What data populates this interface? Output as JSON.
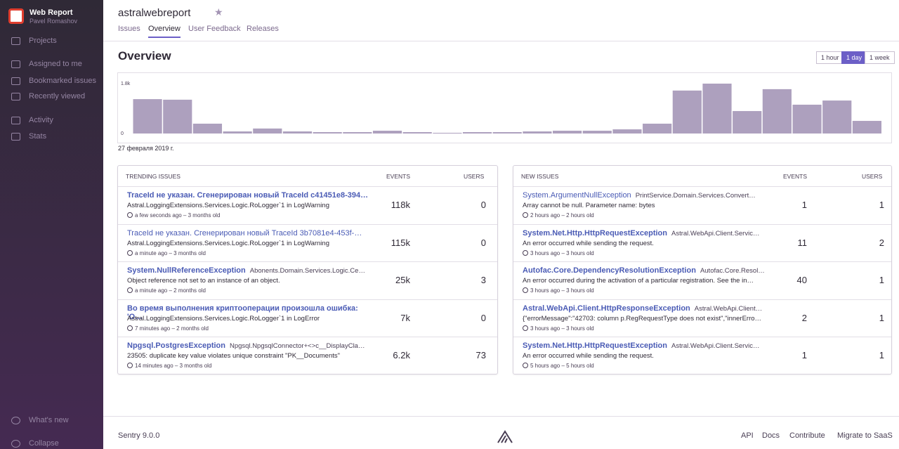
{
  "sidebar": {
    "org": "Web Report",
    "user": "Pavel Romashov",
    "nav": [
      "Projects",
      "Assigned to me",
      "Bookmarked issues",
      "Recently viewed",
      "Activity",
      "Stats"
    ],
    "bottom": [
      "What's new",
      "Collapse"
    ]
  },
  "header": {
    "project": "astralwebreport",
    "tabs": [
      "Issues",
      "Overview",
      "User Feedback",
      "Releases"
    ],
    "active_tab": 1
  },
  "overview": {
    "title": "Overview",
    "ranges": [
      "1 hour",
      "1 day",
      "1 week"
    ],
    "active_range": 1,
    "date": "27 февраля 2019 г."
  },
  "chart_data": {
    "type": "bar",
    "values": [
      1240,
      1220,
      355,
      75,
      180,
      75,
      50,
      50,
      100,
      50,
      25,
      50,
      50,
      75,
      100,
      100,
      150,
      355,
      1550,
      1800,
      810,
      1600,
      1040,
      1190,
      455
    ],
    "color": "#ada0be",
    "ylim": [
      0,
      1800
    ],
    "yticks": [
      0,
      {
        "value": 1800,
        "label": "1.8k"
      }
    ]
  },
  "trending": {
    "columns": [
      "TRENDING ISSUES",
      "EVENTS",
      "USERS"
    ],
    "rows": [
      {
        "title": "TraceId не указан. Сгенерирован новый TraceId c41451e8-394…",
        "message": "Astral.LoggingExtensions.Services.Logic.RoLogger`1 in LogWarning",
        "meta": "a few seconds ago – 3 months old",
        "events": "118k",
        "users": "0"
      },
      {
        "title": "TraceId не указан. Сгенерирован новый TraceId 3b7081e4-453f-…",
        "message": "Astral.LoggingExtensions.Services.Logic.RoLogger`1 in LogWarning",
        "meta": "a minute ago – 3 months old",
        "events": "115k",
        "users": "0"
      },
      {
        "title": "System.NullReferenceException",
        "culprit": "Abonents.Domain.Services.Logic.Ce…",
        "message": "Object reference not set to an instance of an object.",
        "meta": "a minute ago – 2 months old",
        "events": "25k",
        "users": "3"
      },
      {
        "title": "Во время выполнения криптооперации произошла ошибка: 'О…",
        "message": "Astral.LoggingExtensions.Services.Logic.RoLogger`1 in LogError",
        "meta": "7 minutes ago – 2 months old",
        "events": "7k",
        "users": "0"
      },
      {
        "title": "Npgsql.PostgresException",
        "culprit": "Npgsql.NpgsqlConnector+<>c__DisplayCla…",
        "message": "23505: duplicate key value violates unique constraint \"PK__Documents\"",
        "meta": "14 minutes ago – 3 months old",
        "events": "6.2k",
        "users": "73"
      }
    ]
  },
  "new": {
    "columns": [
      "NEW ISSUES",
      "EVENTS",
      "USERS"
    ],
    "rows": [
      {
        "title": "System.ArgumentNullException",
        "culprit": "PrintService.Domain.Services.Convert…",
        "message": "Array cannot be null. Parameter name: bytes",
        "meta": "2 hours ago – 2 hours old",
        "events": "1",
        "users": "1"
      },
      {
        "title": "System.Net.Http.HttpRequestException",
        "culprit": "Astral.WebApi.Client.Servic…",
        "message": "An error occurred while sending the request.",
        "meta": "3 hours ago – 3 hours old",
        "events": "11",
        "users": "2"
      },
      {
        "title": "Autofac.Core.DependencyResolutionException",
        "culprit": "Autofac.Core.Resol…",
        "message": "An error occurred during the activation of a particular registration. See the in…",
        "meta": "3 hours ago – 3 hours old",
        "events": "40",
        "users": "1"
      },
      {
        "title": "Astral.WebApi.Client.HttpResponseException",
        "culprit": "Astral.WebApi.Client…",
        "message": "{\"errorMessage\":\"42703: column p.RegRequestType does not exist\",\"innerErro…",
        "meta": "3 hours ago – 3 hours old",
        "events": "2",
        "users": "1"
      },
      {
        "title": "System.Net.Http.HttpRequestException",
        "culprit": "Astral.WebApi.Client.Servic…",
        "message": "An error occurred while sending the request.",
        "meta": "5 hours ago – 5 hours old",
        "events": "1",
        "users": "1"
      }
    ]
  },
  "footer": {
    "version": "Sentry 9.0.0",
    "links": [
      "API",
      "Docs",
      "Contribute",
      "Migrate to SaaS"
    ]
  }
}
